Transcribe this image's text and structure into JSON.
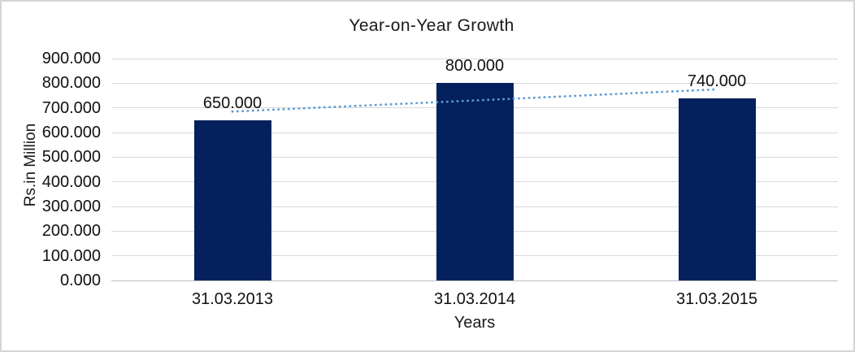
{
  "chart_data": {
    "type": "bar",
    "title": "Year-on-Year Growth",
    "xlabel": "Years",
    "ylabel": "Rs.in Million",
    "categories": [
      "31.03.2013",
      "31.03.2014",
      "31.03.2015"
    ],
    "values": [
      650000,
      800000,
      740000
    ],
    "value_labels": [
      "650.000",
      "800.000",
      "740.000"
    ],
    "ylim": [
      0,
      900000
    ],
    "ytick_step": 100000,
    "y_ticks": [
      {
        "value": 0,
        "label": "0.000"
      },
      {
        "value": 100000,
        "label": "100.000"
      },
      {
        "value": 200000,
        "label": "200.000"
      },
      {
        "value": 300000,
        "label": "300.000"
      },
      {
        "value": 400000,
        "label": "400.000"
      },
      {
        "value": 500000,
        "label": "500.000"
      },
      {
        "value": 600000,
        "label": "600.000"
      },
      {
        "value": 700000,
        "label": "700.000"
      },
      {
        "value": 800000,
        "label": "800.000"
      },
      {
        "value": 900000,
        "label": "900.000"
      }
    ],
    "grid": true,
    "legend": false,
    "trendline": {
      "type": "linear",
      "style": "dotted",
      "color": "#5b9bd5"
    },
    "colors": {
      "bar": "#04215e",
      "gridline": "#d9d9d9",
      "axis_line": "#bfbfbf",
      "text": "#111111",
      "background": "#ffffff",
      "frame_border": "#d5d5d5"
    }
  }
}
